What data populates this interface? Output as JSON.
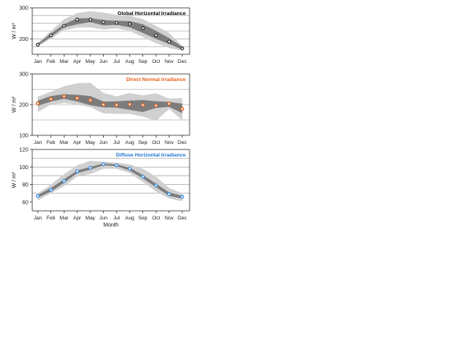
{
  "chart_data": [
    {
      "type": "line",
      "title": "Global Horizontal Irradiance",
      "ylabel": "W / m²",
      "xlabel": "",
      "categories": [
        "Jan",
        "Feb",
        "Mar",
        "Apr",
        "May",
        "Jun",
        "Jul",
        "Aug",
        "Sep",
        "Oct",
        "Nov",
        "Dec"
      ],
      "ylim": [
        150,
        300
      ],
      "yticks": [
        200,
        300
      ],
      "gridlines": [
        175,
        200,
        225,
        250,
        275
      ],
      "title_color": "#000000",
      "marker_color": "#333333",
      "values": [
        181,
        211,
        242,
        262,
        262,
        254,
        252,
        248,
        234,
        211,
        191,
        169
      ],
      "band_outer_upper": [
        187,
        225,
        263,
        283,
        289,
        285,
        277,
        274,
        264,
        242,
        219,
        177
      ],
      "band_outer_lower": [
        176,
        200,
        228,
        236,
        237,
        230,
        234,
        225,
        206,
        186,
        170,
        162
      ],
      "band_inner_upper": [
        184,
        217,
        247,
        266,
        267,
        261,
        258,
        257,
        247,
        226,
        202,
        174
      ],
      "band_inner_lower": [
        178,
        206,
        237,
        247,
        254,
        243,
        245,
        237,
        219,
        200,
        183,
        165
      ]
    },
    {
      "type": "line",
      "title": "Direct Normal Irradiance",
      "ylabel": "W / m²",
      "xlabel": "",
      "categories": [
        "Jan",
        "Feb",
        "Mar",
        "Apr",
        "May",
        "Jun",
        "Jul",
        "Aug",
        "Sep",
        "Oct",
        "Nov",
        "Dec"
      ],
      "ylim": [
        100,
        300
      ],
      "yticks": [
        100,
        200,
        300
      ],
      "gridlines": [
        150,
        200,
        250
      ],
      "title_color": "#e8601c",
      "marker_color": "#e8601c",
      "values": [
        204,
        218,
        227,
        221,
        214,
        200,
        199,
        201,
        199,
        197,
        203,
        186
      ],
      "band_outer_upper": [
        226,
        242,
        260,
        270,
        271,
        238,
        227,
        238,
        230,
        237,
        220,
        221
      ],
      "band_outer_lower": [
        176,
        200,
        205,
        200,
        192,
        171,
        170,
        170,
        161,
        147,
        186,
        149
      ],
      "band_inner_upper": [
        213,
        228,
        234,
        232,
        228,
        210,
        211,
        213,
        215,
        211,
        209,
        203
      ],
      "band_inner_lower": [
        196,
        210,
        219,
        210,
        198,
        191,
        190,
        183,
        176,
        189,
        193,
        172
      ]
    },
    {
      "type": "line",
      "title": "Diffuse Horizontal Irradiance",
      "ylabel": "W / m²",
      "xlabel": "Month",
      "categories": [
        "Jan",
        "Feb",
        "Mar",
        "Apr",
        "May",
        "Jun",
        "Jul",
        "Aug",
        "Sep",
        "Oct",
        "Nov",
        "Dec"
      ],
      "ylim": [
        50,
        120
      ],
      "yticks": [
        60,
        80,
        100,
        120
      ],
      "gridlines": [
        70,
        80,
        90,
        100,
        110
      ],
      "title_color": "#1f77d4",
      "marker_color": "#3a8ee6",
      "values": [
        67,
        74,
        84,
        95,
        99,
        103,
        102,
        98,
        89,
        79,
        69,
        66
      ],
      "band_outer_upper": [
        70,
        80,
        92,
        102,
        107,
        106,
        105,
        103,
        98,
        89,
        76,
        70
      ],
      "band_outer_lower": [
        62,
        70,
        78,
        89,
        92,
        98,
        98,
        93,
        83,
        72,
        64,
        61
      ],
      "band_inner_upper": [
        68,
        76,
        86,
        96,
        100,
        104,
        103,
        99,
        91,
        81,
        71,
        67
      ],
      "band_inner_lower": [
        65,
        72,
        82,
        93,
        97,
        102,
        101,
        96,
        87,
        77,
        67,
        64
      ]
    }
  ]
}
